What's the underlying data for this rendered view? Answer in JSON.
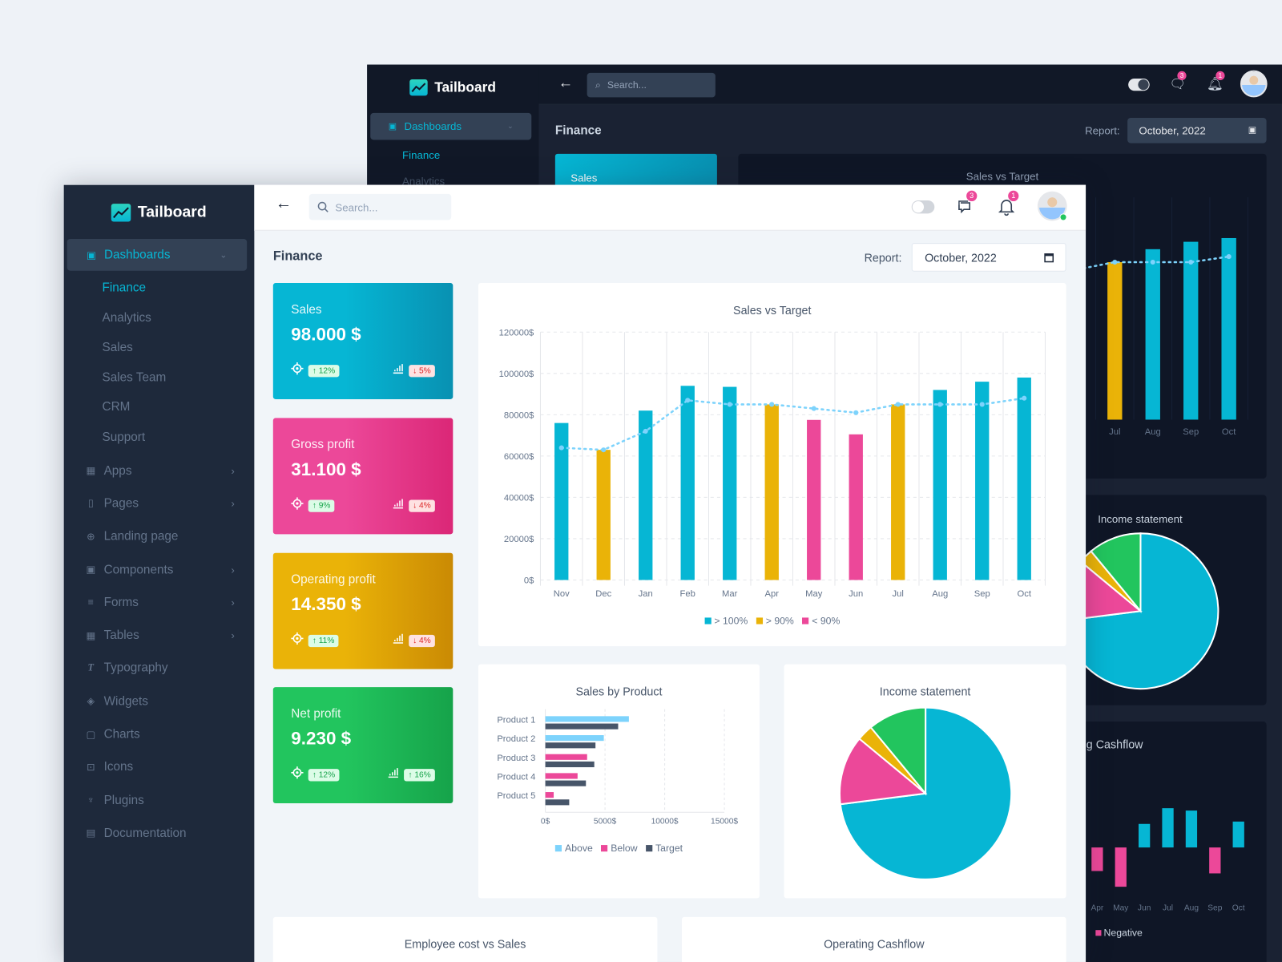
{
  "app": {
    "name": "Tailboard"
  },
  "sidebar": {
    "section": {
      "label": "Dashboards",
      "items": [
        "Finance",
        "Analytics",
        "Sales",
        "Sales Team",
        "CRM",
        "Support"
      ],
      "active": "Finance"
    },
    "items": [
      {
        "label": "Apps",
        "icon": "apps-icon",
        "glyph": "▦",
        "chevron": true
      },
      {
        "label": "Pages",
        "icon": "page-icon",
        "glyph": "▯",
        "chevron": true
      },
      {
        "label": "Landing page",
        "icon": "globe-icon",
        "glyph": "⊕",
        "chevron": false
      },
      {
        "label": "Components",
        "icon": "components-icon",
        "glyph": "▣",
        "chevron": true
      },
      {
        "label": "Forms",
        "icon": "list-icon",
        "glyph": "≡",
        "chevron": true
      },
      {
        "label": "Tables",
        "icon": "table-icon",
        "glyph": "▦",
        "chevron": true
      },
      {
        "label": "Typography",
        "icon": "typography-icon",
        "glyph": "T",
        "chevron": false
      },
      {
        "label": "Widgets",
        "icon": "layers-icon",
        "glyph": "◈",
        "chevron": false
      },
      {
        "label": "Charts",
        "icon": "chart-icon",
        "glyph": "▢",
        "chevron": false
      },
      {
        "label": "Icons",
        "icon": "cup-icon",
        "glyph": "⊡",
        "chevron": false
      },
      {
        "label": "Plugins",
        "icon": "plug-icon",
        "glyph": "♆",
        "chevron": false
      },
      {
        "label": "Documentation",
        "icon": "document-icon",
        "glyph": "▤",
        "chevron": false
      }
    ]
  },
  "header": {
    "search_placeholder": "Search...",
    "messages_count": "3",
    "notifications_count": "1"
  },
  "page": {
    "title": "Finance",
    "report_label": "Report:",
    "report_value": "October, 2022"
  },
  "kpis": [
    {
      "label": "Sales",
      "value": "98.000 $",
      "target_change": "12%",
      "target_dir": "up",
      "trend_change": "5%",
      "trend_dir": "down",
      "color_from": "#06b6d4",
      "color_to": "#0891b2"
    },
    {
      "label": "Gross profit",
      "value": "31.100 $",
      "target_change": "9%",
      "target_dir": "up",
      "trend_change": "4%",
      "trend_dir": "down",
      "color_from": "#ec4899",
      "color_to": "#db2777"
    },
    {
      "label": "Operating profit",
      "value": "14.350 $",
      "target_change": "11%",
      "target_dir": "up",
      "trend_change": "4%",
      "trend_dir": "down",
      "color_from": "#eab308",
      "color_to": "#ca8a04"
    },
    {
      "label": "Net profit",
      "value": "9.230 $",
      "target_change": "12%",
      "target_dir": "up",
      "trend_change": "16%",
      "trend_dir": "up",
      "color_from": "#22c55e",
      "color_to": "#16a34a"
    }
  ],
  "colors": {
    "cyan": "#06b6d4",
    "yellow": "#eab308",
    "pink": "#ec4899",
    "green": "#22c55e",
    "target_line": "#7dd3fc",
    "slate": "#475569"
  },
  "chart_data": [
    {
      "type": "bar",
      "title": "Sales vs Target",
      "categories": [
        "Nov",
        "Dec",
        "Jan",
        "Feb",
        "Mar",
        "Apr",
        "May",
        "Jun",
        "Jul",
        "Aug",
        "Sep",
        "Oct"
      ],
      "ylim": [
        0,
        120000
      ],
      "yticks": [
        "0$",
        "20000$",
        "40000$",
        "60000$",
        "80000$",
        "100000$",
        "120000$"
      ],
      "ytick_values": [
        0,
        20000,
        40000,
        60000,
        80000,
        100000,
        120000
      ],
      "series": [
        {
          "kind": "bar",
          "values": [
            76000,
            63000,
            82000,
            94000,
            93500,
            85000,
            77500,
            70500,
            85000,
            92000,
            96000,
            98000
          ],
          "groups": [
            "> 100%",
            "> 90%",
            "> 100%",
            "> 100%",
            "> 100%",
            "> 90%",
            "< 90%",
            "< 90%",
            "> 90%",
            "> 100%",
            "> 100%",
            "> 100%"
          ]
        },
        {
          "kind": "line-dotted",
          "values": [
            64000,
            63000,
            72000,
            87000,
            85000,
            85000,
            83000,
            81000,
            85000,
            85000,
            85000,
            88000
          ]
        }
      ],
      "legend": [
        {
          "name": "> 100%",
          "color": "#06b6d4"
        },
        {
          "name": "> 90%",
          "color": "#eab308"
        },
        {
          "name": "< 90%",
          "color": "#ec4899"
        }
      ],
      "legend_position": "bottom",
      "grid": true
    },
    {
      "type": "bar",
      "orientation": "horizontal",
      "title": "Sales by Product",
      "categories": [
        "Product 1",
        "Product 2",
        "Product 3",
        "Product 4",
        "Product 5"
      ],
      "xlim": [
        0,
        15000
      ],
      "xticks": [
        "0$",
        "5000$",
        "10000$",
        "15000$"
      ],
      "xtick_values": [
        0,
        5000,
        10000,
        15000
      ],
      "series": [
        {
          "name": "Above",
          "color": "#7dd3fc",
          "values": [
            7000,
            4900,
            null,
            null,
            null
          ]
        },
        {
          "name": "Below",
          "color": "#ec4899",
          "values": [
            null,
            null,
            3500,
            2700,
            700
          ]
        },
        {
          "name": "Target",
          "color": "#475569",
          "values": [
            6100,
            4200,
            4100,
            3400,
            2000
          ]
        }
      ],
      "legend_position": "bottom",
      "grid": true
    },
    {
      "type": "pie",
      "title": "Income statement",
      "values": [
        73,
        13,
        3,
        11
      ],
      "colors": [
        "#06b6d4",
        "#ec4899",
        "#eab308",
        "#22c55e"
      ]
    },
    {
      "type": "bar",
      "title": "Operating Cashflow",
      "categories": [
        "Apr",
        "May",
        "Jun",
        "Jul",
        "Aug",
        "Sep",
        "Oct"
      ],
      "values": [
        -30,
        -50,
        30,
        50,
        47,
        -33,
        33
      ],
      "legend": [
        {
          "name": "Negative",
          "color": "#ec4899"
        }
      ]
    }
  ],
  "bottom_cards": {
    "employee_cost_title": "Employee cost vs Sales",
    "cashflow_title": "Operating Cashflow"
  },
  "background_window": {
    "sidebar_section": "Dashboards",
    "sidebar_items": [
      "Finance",
      "Analytics"
    ],
    "sales_card_label": "Sales"
  }
}
